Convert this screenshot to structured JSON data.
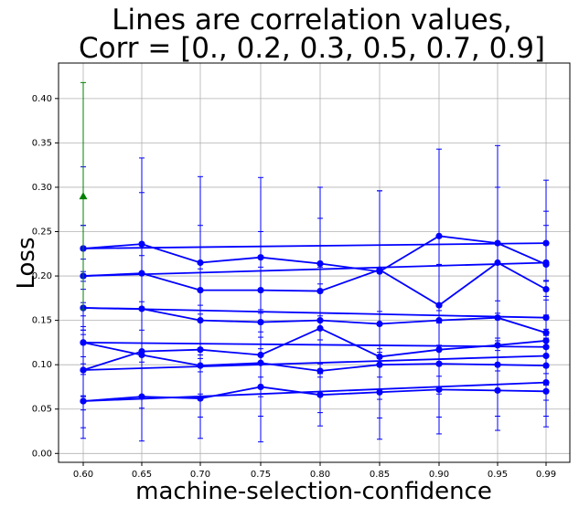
{
  "chart_data": {
    "type": "line",
    "title_line1": "Lines are correlation values,",
    "title_line2": "Corr = [0., 0.2, 0.3, 0.5, 0.7, 0.9]",
    "xlabel": "machine-selection-confidence",
    "ylabel": "Loss",
    "x_categories": [
      "0.60",
      "0.65",
      "0.70",
      "0.75",
      "0.80",
      "0.85",
      "0.90",
      "0.95",
      "0.99"
    ],
    "ylim": [
      -0.01,
      0.44
    ],
    "y_ticks": [
      0.0,
      0.05,
      0.1,
      0.15,
      0.2,
      0.25,
      0.3,
      0.35,
      0.4
    ],
    "y_tick_labels": [
      "0.00",
      "0.05",
      "0.10",
      "0.15",
      "0.20",
      "0.25",
      "0.30",
      "0.35",
      "0.40"
    ],
    "grid": true,
    "colors": {
      "series": "#0000ff",
      "baseline": "#008000",
      "grid": "#b0b0b0",
      "axes": "#000000"
    },
    "series": [
      {
        "x": [
          0.6,
          0.99
        ],
        "y": [
          0.231,
          0.237
        ],
        "err": [
          0.026,
          0.02
        ]
      },
      {
        "x": [
          0.6,
          0.99
        ],
        "y": [
          0.2,
          0.215
        ],
        "err": [
          0.03,
          0.02
        ]
      },
      {
        "x": [
          0.6,
          0.99
        ],
        "y": [
          0.164,
          0.153
        ],
        "err": [
          0.03,
          0.02
        ]
      },
      {
        "x": [
          0.6,
          0.99
        ],
        "y": [
          0.125,
          0.12
        ],
        "err": [
          0.03,
          0.02
        ]
      },
      {
        "x": [
          0.6,
          0.99
        ],
        "y": [
          0.094,
          0.11
        ],
        "err": [
          0.03,
          0.02
        ]
      },
      {
        "x": [
          0.6,
          0.99
        ],
        "y": [
          0.059,
          0.08
        ],
        "err": [
          0.03,
          0.02
        ]
      },
      {
        "x": [
          0.6,
          0.65,
          0.7,
          0.75,
          0.8,
          0.85,
          0.9,
          0.95,
          0.99
        ],
        "y": [
          0.231,
          0.236,
          0.215,
          0.221,
          0.214,
          0.205,
          0.245,
          0.237,
          0.213
        ],
        "err": [
          0.092,
          0.097,
          0.097,
          0.09,
          0.086,
          0.091,
          0.098,
          0.11,
          0.095
        ]
      },
      {
        "x": [
          0.6,
          0.65,
          0.7,
          0.75,
          0.8,
          0.85,
          0.9,
          0.95,
          0.99
        ],
        "y": [
          0.2,
          0.203,
          0.184,
          0.184,
          0.183,
          0.207,
          0.167,
          0.215,
          0.185
        ],
        "err": [
          0.057,
          0.091,
          0.073,
          0.066,
          0.082,
          0.089,
          0.046,
          0.085,
          0.088
        ]
      },
      {
        "x": [
          0.6,
          0.65,
          0.7,
          0.75,
          0.8,
          0.85,
          0.9,
          0.95,
          0.99
        ],
        "y": [
          0.164,
          0.163,
          0.15,
          0.148,
          0.15,
          0.146,
          0.15,
          0.153,
          0.136
        ],
        "err": [
          0.055,
          0.06,
          0.058,
          0.062,
          0.06,
          0.06,
          0.063,
          0.06,
          0.058
        ]
      },
      {
        "x": [
          0.6,
          0.65,
          0.7,
          0.75,
          0.8,
          0.85,
          0.9,
          0.95,
          0.99
        ],
        "y": [
          0.125,
          0.111,
          0.099,
          0.102,
          0.093,
          0.1,
          0.101,
          0.1,
          0.099
        ],
        "err": [
          0.06,
          0.06,
          0.058,
          0.06,
          0.062,
          0.06,
          0.06,
          0.058,
          0.057
        ]
      },
      {
        "x": [
          0.6,
          0.65,
          0.7,
          0.75,
          0.8,
          0.85,
          0.9,
          0.95,
          0.99
        ],
        "y": [
          0.094,
          0.115,
          0.117,
          0.111,
          0.141,
          0.109,
          0.117,
          0.122,
          0.127
        ],
        "err": [
          0.045,
          0.05,
          0.05,
          0.047,
          0.05,
          0.048,
          0.05,
          0.05,
          0.05
        ]
      },
      {
        "x": [
          0.6,
          0.65,
          0.7,
          0.75,
          0.8,
          0.85,
          0.9,
          0.95,
          0.99
        ],
        "y": [
          0.059,
          0.064,
          0.062,
          0.075,
          0.066,
          0.069,
          0.072,
          0.071,
          0.07
        ],
        "err": [
          0.042,
          0.05,
          0.045,
          0.062,
          0.02,
          0.053,
          0.05,
          0.045,
          0.04
        ]
      }
    ],
    "baseline_point": {
      "x": 0.6,
      "y": 0.29,
      "err": 0.128,
      "marker": "triangle"
    }
  }
}
